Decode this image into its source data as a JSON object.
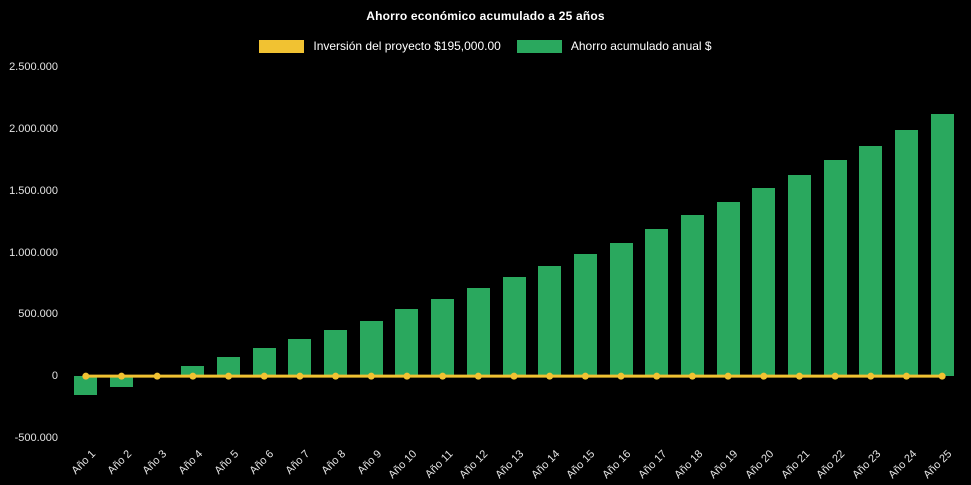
{
  "title": "Ahorro económico acumulado a 25 años",
  "legend": {
    "items": [
      {
        "label": "Inversión del proyecto $195,000.00",
        "color": "#f1c232"
      },
      {
        "label": "Ahorro acumulado anual $",
        "color": "#2aa85e"
      }
    ]
  },
  "chart_data": {
    "type": "bar",
    "title": "Ahorro económico acumulado a 25 años",
    "background_color": "#000000",
    "text_color": "#e3e3e3",
    "legend_position": "top",
    "grid": false,
    "categories": [
      "Año 1",
      "Año 2",
      "Año 3",
      "Año 4",
      "Año 5",
      "Año 6",
      "Año 7",
      "Año 8",
      "Año 9",
      "Año 10",
      "Año 11",
      "Año 12",
      "Año 13",
      "Año 14",
      "Año 15",
      "Año 16",
      "Año 17",
      "Año 18",
      "Año 19",
      "Año 20",
      "Año 21",
      "Año 22",
      "Año 23",
      "Año 24",
      "Año 25"
    ],
    "series": [
      {
        "name": "Inversión del proyecto $195,000.00",
        "type": "line",
        "color": "#f1c232",
        "constant_value": 0
      },
      {
        "name": "Ahorro acumulado anual $",
        "type": "bar",
        "color": "#2aa85e",
        "values": [
          -150000,
          -85000,
          8000,
          80000,
          155000,
          230000,
          300000,
          375000,
          450000,
          540000,
          625000,
          710000,
          800000,
          890000,
          985000,
          1080000,
          1190000,
          1300000,
          1410000,
          1520000,
          1630000,
          1745000,
          1865000,
          1990000,
          2120000
        ]
      }
    ],
    "ylim": [
      -500000,
      2500000
    ],
    "yticks": [
      {
        "value": 2500000,
        "label": "2.500.000"
      },
      {
        "value": 2000000,
        "label": "2.000.000"
      },
      {
        "value": 1500000,
        "label": "1.500.000"
      },
      {
        "value": 1000000,
        "label": "1.000.000"
      },
      {
        "value": 500000,
        "label": "500.000"
      },
      {
        "value": 0,
        "label": "0"
      },
      {
        "value": -500000,
        "label": "-500.000"
      }
    ]
  }
}
